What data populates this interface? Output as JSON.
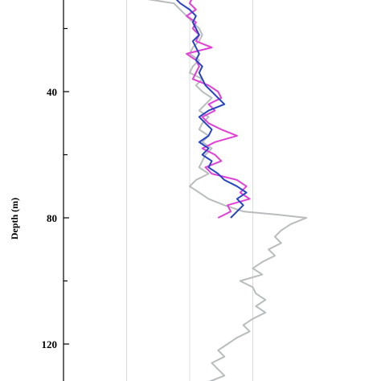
{
  "chart_data": {
    "type": "line",
    "title": "",
    "ylabel": "Depth (m)",
    "xlabel": "",
    "y_inverted": true,
    "ylim": [
      10,
      136
    ],
    "xlim": [
      0,
      4
    ],
    "y_major_ticks": [
      40,
      80,
      120
    ],
    "y_minor_ticks": [
      20,
      60,
      100
    ],
    "x_gridlines": [
      1,
      2,
      3
    ],
    "grid": "vertical",
    "series": [
      {
        "key": "gray",
        "color": "#b8bcbc",
        "points": [
          [
            1.1,
            10
          ],
          [
            1.75,
            12
          ],
          [
            1.85,
            14
          ],
          [
            1.95,
            16
          ],
          [
            2.05,
            18
          ],
          [
            2.15,
            20
          ],
          [
            2.2,
            22
          ],
          [
            2.15,
            24
          ],
          [
            2.05,
            26
          ],
          [
            2.0,
            28
          ],
          [
            2.15,
            30
          ],
          [
            2.05,
            32
          ],
          [
            2.0,
            34
          ],
          [
            2.2,
            36
          ],
          [
            2.1,
            38
          ],
          [
            2.2,
            40
          ],
          [
            2.35,
            42
          ],
          [
            2.25,
            44
          ],
          [
            2.15,
            46
          ],
          [
            2.3,
            48
          ],
          [
            2.2,
            50
          ],
          [
            2.15,
            52
          ],
          [
            2.3,
            54
          ],
          [
            2.2,
            56
          ],
          [
            2.35,
            58
          ],
          [
            2.25,
            60
          ],
          [
            2.2,
            62
          ],
          [
            2.15,
            64
          ],
          [
            2.3,
            66
          ],
          [
            2.1,
            68
          ],
          [
            2.0,
            70
          ],
          [
            2.15,
            72
          ],
          [
            2.3,
            74
          ],
          [
            2.55,
            76
          ],
          [
            2.85,
            78
          ],
          [
            3.4,
            79
          ],
          [
            3.85,
            80
          ],
          [
            3.6,
            82
          ],
          [
            3.45,
            84
          ],
          [
            3.35,
            86
          ],
          [
            3.45,
            88
          ],
          [
            3.25,
            90
          ],
          [
            3.35,
            92
          ],
          [
            3.15,
            94
          ],
          [
            3.0,
            96
          ],
          [
            3.15,
            98
          ],
          [
            2.8,
            100
          ],
          [
            3.0,
            102
          ],
          [
            3.05,
            104
          ],
          [
            3.2,
            106
          ],
          [
            3.05,
            108
          ],
          [
            3.2,
            110
          ],
          [
            3.0,
            112
          ],
          [
            2.85,
            114
          ],
          [
            2.95,
            116
          ],
          [
            2.75,
            118
          ],
          [
            2.6,
            120
          ],
          [
            2.45,
            122
          ],
          [
            2.55,
            124
          ],
          [
            2.35,
            126
          ],
          [
            2.45,
            128
          ],
          [
            2.55,
            130
          ],
          [
            2.3,
            132
          ],
          [
            2.25,
            134
          ]
        ]
      },
      {
        "key": "magenta",
        "color": "#e040d6",
        "points": [
          [
            2.05,
            10
          ],
          [
            2.0,
            12
          ],
          [
            2.1,
            14
          ],
          [
            1.95,
            16
          ],
          [
            2.1,
            18
          ],
          [
            2.05,
            20
          ],
          [
            2.15,
            22
          ],
          [
            2.1,
            24
          ],
          [
            2.35,
            26
          ],
          [
            1.95,
            28
          ],
          [
            2.1,
            30
          ],
          [
            2.15,
            32
          ],
          [
            2.1,
            34
          ],
          [
            2.05,
            36
          ],
          [
            2.3,
            38
          ],
          [
            2.45,
            40
          ],
          [
            2.5,
            42
          ],
          [
            2.3,
            44
          ],
          [
            2.4,
            46
          ],
          [
            2.2,
            48
          ],
          [
            2.3,
            50
          ],
          [
            2.5,
            52
          ],
          [
            2.75,
            54
          ],
          [
            2.4,
            56
          ],
          [
            2.2,
            58
          ],
          [
            2.4,
            60
          ],
          [
            2.5,
            62
          ],
          [
            2.25,
            64
          ],
          [
            2.35,
            66
          ],
          [
            2.75,
            68
          ],
          [
            2.9,
            70
          ],
          [
            2.8,
            72
          ],
          [
            2.95,
            74
          ],
          [
            2.6,
            76
          ],
          [
            2.65,
            78
          ],
          [
            2.45,
            80
          ]
        ]
      },
      {
        "key": "blue",
        "color": "#2645c2",
        "points": [
          [
            1.75,
            10
          ],
          [
            1.85,
            12
          ],
          [
            2.0,
            14
          ],
          [
            2.1,
            16
          ],
          [
            2.05,
            18
          ],
          [
            2.1,
            20
          ],
          [
            2.15,
            22
          ],
          [
            2.05,
            24
          ],
          [
            2.1,
            26
          ],
          [
            2.15,
            28
          ],
          [
            2.1,
            30
          ],
          [
            2.2,
            32
          ],
          [
            2.15,
            34
          ],
          [
            2.2,
            36
          ],
          [
            2.25,
            38
          ],
          [
            2.35,
            40
          ],
          [
            2.45,
            42
          ],
          [
            2.55,
            44
          ],
          [
            2.3,
            46
          ],
          [
            2.15,
            48
          ],
          [
            2.25,
            50
          ],
          [
            2.35,
            52
          ],
          [
            2.3,
            54
          ],
          [
            2.15,
            56
          ],
          [
            2.3,
            58
          ],
          [
            2.2,
            60
          ],
          [
            2.35,
            62
          ],
          [
            2.3,
            64
          ],
          [
            2.45,
            66
          ],
          [
            2.55,
            68
          ],
          [
            2.75,
            70
          ],
          [
            2.9,
            72
          ],
          [
            2.75,
            74
          ],
          [
            2.85,
            76
          ],
          [
            2.75,
            78
          ],
          [
            2.65,
            80
          ]
        ]
      }
    ]
  }
}
